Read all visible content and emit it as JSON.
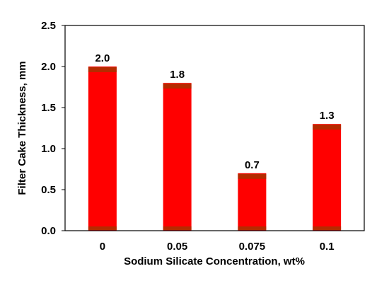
{
  "chart_data": {
    "type": "bar",
    "categories": [
      "0",
      "0.05",
      "0.075",
      "0.1"
    ],
    "values": [
      2.0,
      1.8,
      0.7,
      1.3
    ],
    "data_labels": [
      "2.0",
      "1.8",
      "0.7",
      "1.3"
    ],
    "title": "",
    "xlabel": "Sodium Silicate Concentration, wt%",
    "ylabel": "Filter Cake Thickness, mm",
    "ylim": [
      0,
      2.5
    ],
    "yticks": [
      0.0,
      0.5,
      1.0,
      1.5,
      2.0,
      2.5
    ],
    "ytick_labels": [
      "0.0",
      "0.5",
      "1.0",
      "1.5",
      "2.0",
      "2.5"
    ],
    "grid": false,
    "legend": "none",
    "colors": {
      "bar_fill": "#ff0000",
      "bar_band": "#a83200",
      "frame": "#000000"
    }
  }
}
